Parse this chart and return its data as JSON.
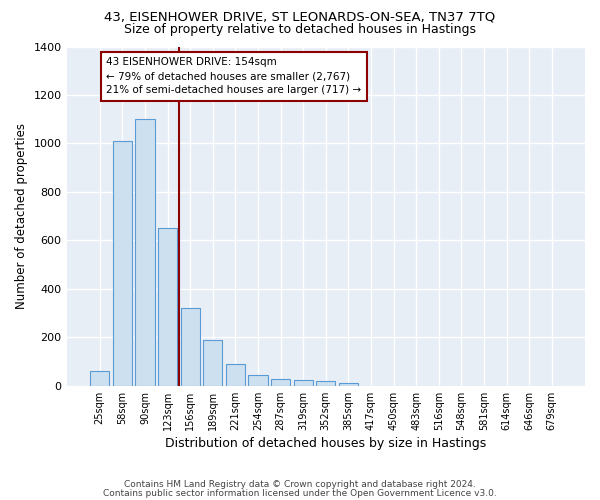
{
  "title1": "43, EISENHOWER DRIVE, ST LEONARDS-ON-SEA, TN37 7TQ",
  "title2": "Size of property relative to detached houses in Hastings",
  "xlabel": "Distribution of detached houses by size in Hastings",
  "ylabel": "Number of detached properties",
  "bar_labels": [
    "25sqm",
    "58sqm",
    "90sqm",
    "123sqm",
    "156sqm",
    "189sqm",
    "221sqm",
    "254sqm",
    "287sqm",
    "319sqm",
    "352sqm",
    "385sqm",
    "417sqm",
    "450sqm",
    "483sqm",
    "516sqm",
    "548sqm",
    "581sqm",
    "614sqm",
    "646sqm",
    "679sqm"
  ],
  "bar_values": [
    60,
    1010,
    1100,
    650,
    320,
    190,
    90,
    45,
    30,
    22,
    20,
    10,
    0,
    0,
    0,
    0,
    0,
    0,
    0,
    0,
    0
  ],
  "bar_color": "#cce0f0",
  "bar_edge_color": "#5b9bd5",
  "vline_color": "#8b0000",
  "annotation_text": "43 EISENHOWER DRIVE: 154sqm\n← 79% of detached houses are smaller (2,767)\n21% of semi-detached houses are larger (717) →",
  "annotation_box_color": "white",
  "annotation_box_edge": "#8b0000",
  "ylim": [
    0,
    1400
  ],
  "yticks": [
    0,
    200,
    400,
    600,
    800,
    1000,
    1200,
    1400
  ],
  "bg_color": "#e8eef6",
  "grid_color": "white",
  "footer1": "Contains HM Land Registry data © Crown copyright and database right 2024.",
  "footer2": "Contains public sector information licensed under the Open Government Licence v3.0."
}
